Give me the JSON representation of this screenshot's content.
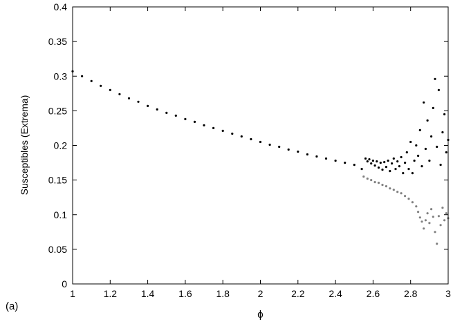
{
  "panel_label": "(a)",
  "chart_data": {
    "type": "scatter",
    "title": "",
    "xlabel": "ϕ",
    "ylabel": "Susceptibles (Extrema)",
    "xlim": [
      1,
      3
    ],
    "ylim": [
      0,
      0.4
    ],
    "x_ticks": [
      1,
      1.2,
      1.4,
      1.6,
      1.8,
      2,
      2.2,
      2.4,
      2.6,
      2.8,
      3
    ],
    "x_tick_labels": [
      "1",
      "1.2",
      "1.4",
      "1.6",
      "1.8",
      "2",
      "2.2",
      "2.4",
      "2.6",
      "2.8",
      "3"
    ],
    "y_ticks": [
      0,
      0.05,
      0.1,
      0.15,
      0.2,
      0.25,
      0.3,
      0.35,
      0.4
    ],
    "y_tick_labels": [
      "0",
      "0.05",
      "0.1",
      "0.15",
      "0.2",
      "0.25",
      "0.3",
      "0.35",
      "0.4"
    ],
    "grid": false,
    "legend": "none",
    "colors": {
      "maxima": "#000000",
      "minima": "#808080",
      "axis": "#000000"
    },
    "series": [
      {
        "color": "#000000",
        "points": [
          [
            1.0,
            0.307
          ],
          [
            1.05,
            0.3
          ],
          [
            1.1,
            0.293
          ],
          [
            1.15,
            0.286
          ],
          [
            1.2,
            0.28
          ],
          [
            1.25,
            0.274
          ],
          [
            1.3,
            0.268
          ],
          [
            1.35,
            0.263
          ],
          [
            1.4,
            0.257
          ],
          [
            1.45,
            0.252
          ],
          [
            1.5,
            0.247
          ],
          [
            1.55,
            0.243
          ],
          [
            1.6,
            0.238
          ],
          [
            1.65,
            0.234
          ],
          [
            1.7,
            0.229
          ],
          [
            1.75,
            0.225
          ],
          [
            1.8,
            0.221
          ],
          [
            1.85,
            0.217
          ],
          [
            1.9,
            0.213
          ],
          [
            1.95,
            0.209
          ],
          [
            2.0,
            0.205
          ],
          [
            2.05,
            0.201
          ],
          [
            2.1,
            0.198
          ],
          [
            2.15,
            0.194
          ],
          [
            2.2,
            0.191
          ],
          [
            2.25,
            0.187
          ],
          [
            2.3,
            0.184
          ],
          [
            2.35,
            0.181
          ],
          [
            2.4,
            0.178
          ],
          [
            2.45,
            0.175
          ],
          [
            2.5,
            0.172
          ],
          [
            2.54,
            0.166
          ],
          [
            2.56,
            0.181
          ],
          [
            2.57,
            0.177
          ],
          [
            2.58,
            0.18
          ],
          [
            2.59,
            0.174
          ],
          [
            2.6,
            0.178
          ],
          [
            2.61,
            0.171
          ],
          [
            2.62,
            0.177
          ],
          [
            2.63,
            0.168
          ],
          [
            2.64,
            0.175
          ],
          [
            2.65,
            0.165
          ],
          [
            2.66,
            0.176
          ],
          [
            2.67,
            0.169
          ],
          [
            2.68,
            0.178
          ],
          [
            2.69,
            0.163
          ],
          [
            2.7,
            0.174
          ],
          [
            2.71,
            0.181
          ],
          [
            2.72,
            0.166
          ],
          [
            2.73,
            0.177
          ],
          [
            2.74,
            0.17
          ],
          [
            2.75,
            0.183
          ],
          [
            2.76,
            0.16
          ],
          [
            2.77,
            0.175
          ],
          [
            2.78,
            0.19
          ],
          [
            2.79,
            0.166
          ],
          [
            2.8,
            0.205
          ],
          [
            2.81,
            0.16
          ],
          [
            2.82,
            0.178
          ],
          [
            2.83,
            0.2
          ],
          [
            2.84,
            0.185
          ],
          [
            2.85,
            0.222
          ],
          [
            2.86,
            0.17
          ],
          [
            2.87,
            0.262
          ],
          [
            2.88,
            0.195
          ],
          [
            2.89,
            0.236
          ],
          [
            2.9,
            0.178
          ],
          [
            2.91,
            0.213
          ],
          [
            2.92,
            0.254
          ],
          [
            2.93,
            0.296
          ],
          [
            2.94,
            0.198
          ],
          [
            2.95,
            0.28
          ],
          [
            2.96,
            0.172
          ],
          [
            2.97,
            0.219
          ],
          [
            2.98,
            0.245
          ],
          [
            2.99,
            0.19
          ],
          [
            3.0,
            0.208
          ]
        ]
      },
      {
        "color": "#808080",
        "points": [
          [
            2.55,
            0.155
          ],
          [
            2.57,
            0.152
          ],
          [
            2.59,
            0.15
          ],
          [
            2.61,
            0.147
          ],
          [
            2.63,
            0.146
          ],
          [
            2.65,
            0.143
          ],
          [
            2.67,
            0.141
          ],
          [
            2.69,
            0.138
          ],
          [
            2.71,
            0.136
          ],
          [
            2.73,
            0.133
          ],
          [
            2.75,
            0.131
          ],
          [
            2.77,
            0.127
          ],
          [
            2.79,
            0.123
          ],
          [
            2.81,
            0.118
          ],
          [
            2.83,
            0.112
          ],
          [
            2.84,
            0.104
          ],
          [
            2.85,
            0.096
          ],
          [
            2.86,
            0.09
          ],
          [
            2.87,
            0.08
          ],
          [
            2.88,
            0.092
          ],
          [
            2.89,
            0.102
          ],
          [
            2.9,
            0.088
          ],
          [
            2.91,
            0.108
          ],
          [
            2.92,
            0.097
          ],
          [
            2.93,
            0.075
          ],
          [
            2.94,
            0.058
          ],
          [
            2.95,
            0.098
          ],
          [
            2.96,
            0.085
          ],
          [
            2.97,
            0.11
          ],
          [
            2.98,
            0.092
          ],
          [
            2.99,
            0.102
          ],
          [
            3.0,
            0.095
          ]
        ]
      }
    ]
  }
}
